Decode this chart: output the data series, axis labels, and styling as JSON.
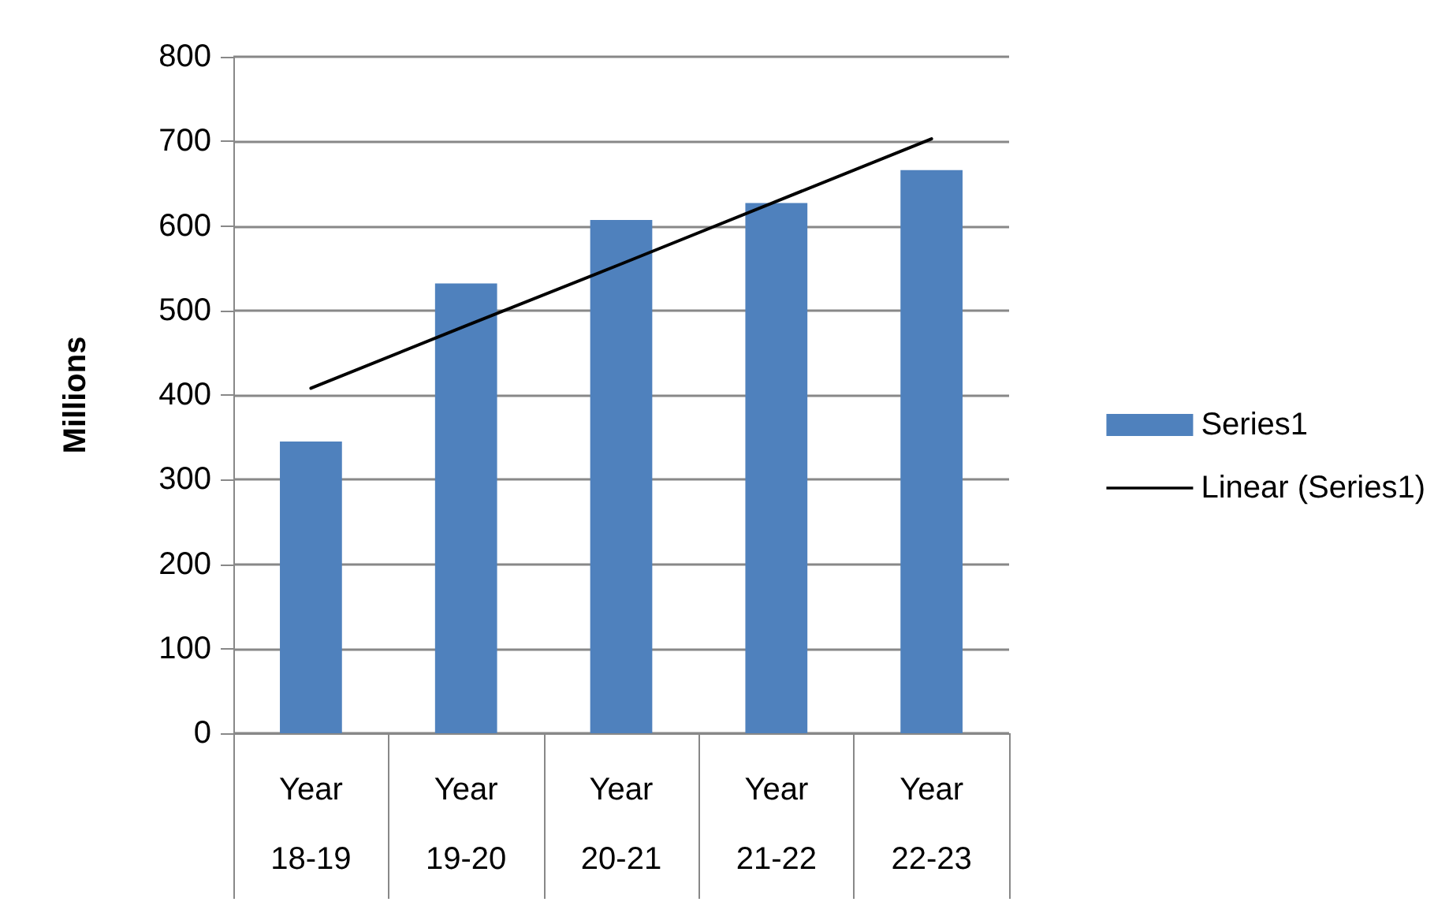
{
  "chart_data": {
    "type": "bar",
    "ylabel": "Millions",
    "categories": [
      "Year\n18-19",
      "Year\n19-20",
      "Year\n20-21",
      "Year\n21-22",
      "Year\n22-23"
    ],
    "series": [
      {
        "name": "Series1",
        "color": "#4f81bd",
        "values": [
          345,
          532,
          607,
          627,
          666
        ]
      },
      {
        "name": "Linear (Series1)",
        "type": "line",
        "color": "#000000",
        "marker": "none",
        "line_style": "solid",
        "values": [
          408,
          482,
          555,
          629,
          703
        ]
      }
    ],
    "ylim": [
      0,
      800
    ],
    "yticks": [
      0,
      100,
      200,
      300,
      400,
      500,
      600,
      700,
      800
    ],
    "grid": "y",
    "legend": "right"
  }
}
